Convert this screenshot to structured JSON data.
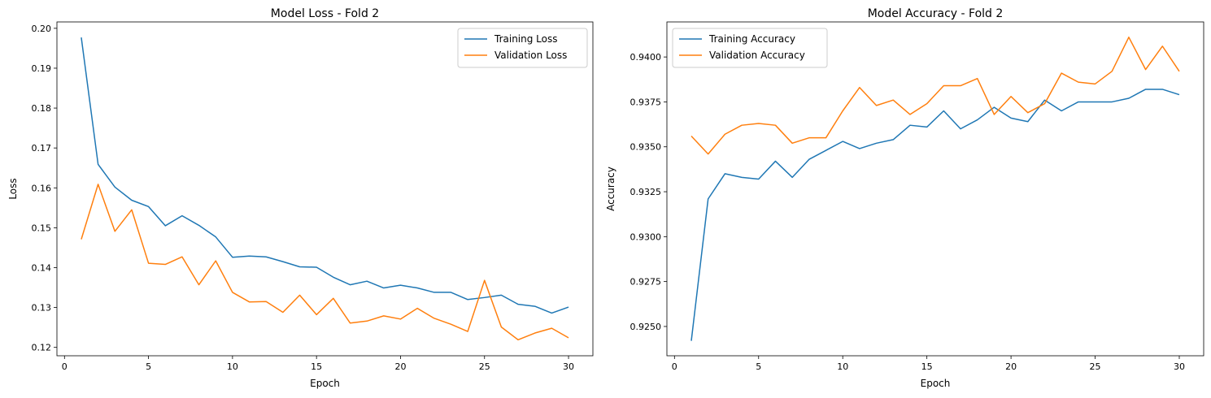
{
  "chart_data": [
    {
      "type": "line",
      "title": "Model Loss - Fold 2",
      "xlabel": "Epoch",
      "ylabel": "Loss",
      "xlim": [
        -0.45,
        31.45
      ],
      "ylim": [
        0.1179,
        0.2016
      ],
      "xticks": [
        0,
        5,
        10,
        15,
        20,
        25,
        30
      ],
      "yticks": [
        0.12,
        0.13,
        0.14,
        0.15,
        0.16,
        0.17,
        0.18,
        0.19,
        0.2
      ],
      "ytick_labels": [
        "0.12",
        "0.13",
        "0.14",
        "0.15",
        "0.16",
        "0.17",
        "0.18",
        "0.19",
        "0.20"
      ],
      "legend_position": "upper-right",
      "grid": false,
      "x": [
        1,
        2,
        3,
        4,
        5,
        6,
        7,
        8,
        9,
        10,
        11,
        12,
        13,
        14,
        15,
        16,
        17,
        18,
        19,
        20,
        21,
        22,
        23,
        24,
        25,
        26,
        27,
        28,
        29,
        30
      ],
      "series": [
        {
          "name": "Training Loss",
          "color": "#1f77b4",
          "values": [
            0.1977,
            0.1659,
            0.1602,
            0.1569,
            0.1553,
            0.1505,
            0.153,
            0.1506,
            0.1477,
            0.1426,
            0.1429,
            0.1427,
            0.1415,
            0.1402,
            0.1401,
            0.1376,
            0.1357,
            0.1366,
            0.1349,
            0.1356,
            0.1349,
            0.1338,
            0.1338,
            0.132,
            0.1325,
            0.1331,
            0.1308,
            0.1303,
            0.1286,
            0.1301
          ]
        },
        {
          "name": "Validation Loss",
          "color": "#ff7f0e",
          "values": [
            0.1471,
            0.1609,
            0.1491,
            0.1545,
            0.1411,
            0.1408,
            0.1427,
            0.1357,
            0.1417,
            0.1338,
            0.1314,
            0.1315,
            0.1288,
            0.1331,
            0.1282,
            0.1323,
            0.1261,
            0.1266,
            0.1279,
            0.1271,
            0.1298,
            0.1273,
            0.1258,
            0.124,
            0.1368,
            0.1251,
            0.1219,
            0.1236,
            0.1248,
            0.1224
          ]
        }
      ]
    },
    {
      "type": "line",
      "title": "Model Accuracy - Fold 2",
      "xlabel": "Epoch",
      "ylabel": "Accuracy",
      "xlim": [
        -0.45,
        31.45
      ],
      "ylim": [
        0.92337,
        0.94195
      ],
      "xticks": [
        0,
        5,
        10,
        15,
        20,
        25,
        30
      ],
      "yticks": [
        0.925,
        0.9275,
        0.93,
        0.9325,
        0.935,
        0.9375,
        0.94
      ],
      "ytick_labels": [
        "0.9250",
        "0.9275",
        "0.9300",
        "0.9325",
        "0.9350",
        "0.9375",
        "0.9400"
      ],
      "legend_position": "upper-left",
      "grid": false,
      "x": [
        1,
        2,
        3,
        4,
        5,
        6,
        7,
        8,
        9,
        10,
        11,
        12,
        13,
        14,
        15,
        16,
        17,
        18,
        19,
        20,
        21,
        22,
        23,
        24,
        25,
        26,
        27,
        28,
        29,
        30
      ],
      "series": [
        {
          "name": "Training Accuracy",
          "color": "#1f77b4",
          "values": [
            0.9242,
            0.9321,
            0.9335,
            0.9333,
            0.9332,
            0.9342,
            0.9333,
            0.9343,
            0.9348,
            0.9353,
            0.9349,
            0.9352,
            0.9354,
            0.9362,
            0.9361,
            0.937,
            0.936,
            0.9365,
            0.9372,
            0.9366,
            0.9364,
            0.9376,
            0.937,
            0.9375,
            0.9375,
            0.9375,
            0.9377,
            0.9382,
            0.9382,
            0.9379
          ]
        },
        {
          "name": "Validation Accuracy",
          "color": "#ff7f0e",
          "values": [
            0.9356,
            0.9346,
            0.9357,
            0.9362,
            0.9363,
            0.9362,
            0.9352,
            0.9355,
            0.9355,
            0.937,
            0.9383,
            0.9373,
            0.9376,
            0.9368,
            0.9374,
            0.9384,
            0.9384,
            0.9388,
            0.9368,
            0.9378,
            0.9369,
            0.9374,
            0.9391,
            0.9386,
            0.9385,
            0.9392,
            0.9411,
            0.9393,
            0.9406,
            0.9392
          ]
        }
      ]
    }
  ]
}
